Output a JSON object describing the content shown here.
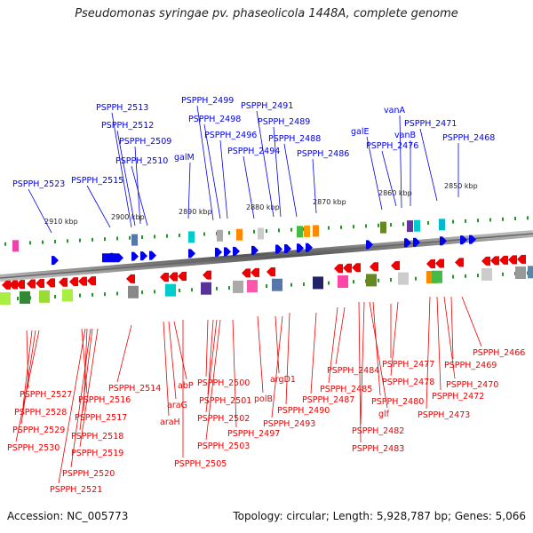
{
  "title": "Pseudomonas syringae pv. phaseolicola 1448A, complete genome",
  "footer": {
    "accession": "Accession: NC_005773",
    "summary": "Topology: circular; Length: 5,928,787 bp; Genes: 5,066"
  },
  "kbp_labels": [
    "2910 kbp",
    "2900 kbp",
    "2890 kbp",
    "2880 kbp",
    "2870 kbp",
    "2860 kbp",
    "2850 kbp"
  ],
  "top_labels": [
    "PSPPH_2523",
    "PSPPH_2515",
    "PSPPH_2513",
    "PSPPH_2512",
    "PSPPH_2509",
    "PSPPH_2510",
    "galM",
    "PSPPH_2499",
    "PSPPH_2498",
    "PSPPH_2496",
    "PSPPH_2494",
    "PSPPH_2491",
    "PSPPH_2489",
    "PSPPH_2488",
    "PSPPH_2486",
    "galE",
    "vanA",
    "vanB",
    "PSPPH_2476",
    "PSPPH_2471",
    "PSPPH_2468"
  ],
  "bottom_labels": [
    "PSPPH_2527",
    "PSPPH_2528",
    "PSPPH_2529",
    "PSPPH_2530",
    "PSPPH_2516",
    "PSPPH_2517",
    "PSPPH_2518",
    "PSPPH_2519",
    "PSPPH_2520",
    "PSPPH_2521",
    "PSPPH_2514",
    "araG",
    "araH",
    "abP",
    "PSPPH_2500",
    "PSPPH_2501",
    "PSPPH_2502",
    "PSPPH_2503",
    "PSPPH_2505",
    "PSPPH_2497",
    "polB",
    "argD1",
    "PSPPH_2493",
    "PSPPH_2490",
    "PSPPH_2487",
    "PSPPH_2484",
    "PSPPH_2485",
    "PSPPH_2477",
    "PSPPH_2478",
    "glf",
    "PSPPH_2480",
    "PSPPH_2482",
    "PSPPH_2483",
    "PSPPH_2466",
    "PSPPH_2469",
    "PSPPH_2470",
    "PSPPH_2472",
    "PSPPH_2473"
  ],
  "colors": {
    "forward": "#0000ee",
    "reverse": "#ee0000",
    "ticks": "#229922",
    "backbone": "#888888"
  }
}
